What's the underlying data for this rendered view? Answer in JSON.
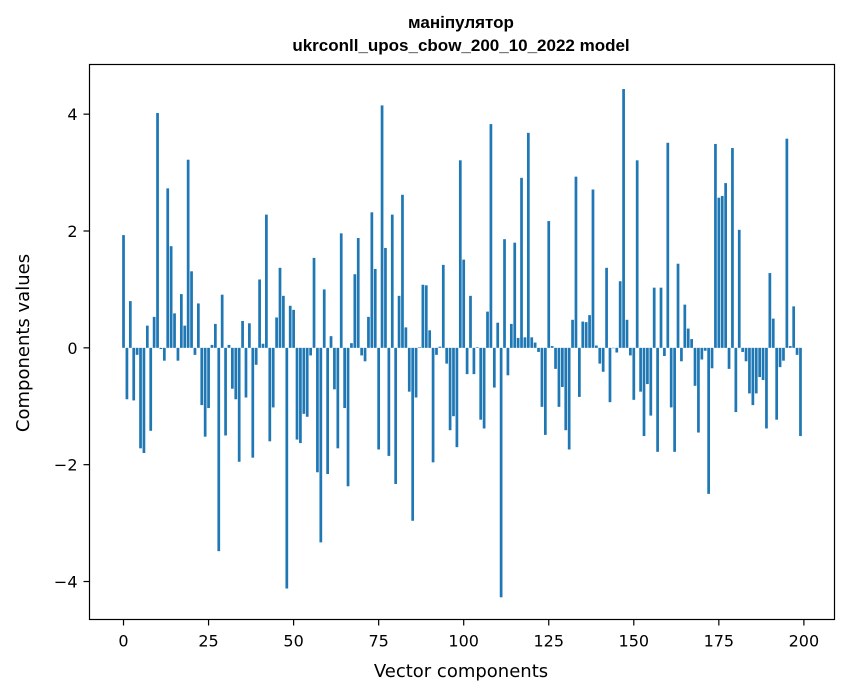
{
  "chart_data": {
    "type": "bar",
    "title": "маніпулятор",
    "subtitle": "ukrconll_upos_cbow_200_10_2022 model",
    "xlabel": "Vector components",
    "ylabel": "Components values",
    "xlim": [
      -10,
      209
    ],
    "ylim": [
      -4.65,
      4.85
    ],
    "xticks": [
      0,
      25,
      50,
      75,
      100,
      125,
      150,
      175,
      200
    ],
    "xtick_labels": [
      "0",
      "25",
      "50",
      "75",
      "100",
      "125",
      "150",
      "175",
      "200"
    ],
    "yticks": [
      -4,
      -2,
      0,
      2,
      4
    ],
    "ytick_labels": [
      "−4",
      "−2",
      "0",
      "2",
      "4"
    ],
    "grid": false,
    "bar_color": "#1f77b4",
    "x": [
      0,
      1,
      2,
      3,
      4,
      5,
      6,
      7,
      8,
      9,
      10,
      11,
      12,
      13,
      14,
      15,
      16,
      17,
      18,
      19,
      20,
      21,
      22,
      23,
      24,
      25,
      26,
      27,
      28,
      29,
      30,
      31,
      32,
      33,
      34,
      35,
      36,
      37,
      38,
      39,
      40,
      41,
      42,
      43,
      44,
      45,
      46,
      47,
      48,
      49,
      50,
      51,
      52,
      53,
      54,
      55,
      56,
      57,
      58,
      59,
      60,
      61,
      62,
      63,
      64,
      65,
      66,
      67,
      68,
      69,
      70,
      71,
      72,
      73,
      74,
      75,
      76,
      77,
      78,
      79,
      80,
      81,
      82,
      83,
      84,
      85,
      86,
      87,
      88,
      89,
      90,
      91,
      92,
      93,
      94,
      95,
      96,
      97,
      98,
      99,
      100,
      101,
      102,
      103,
      104,
      105,
      106,
      107,
      108,
      109,
      110,
      111,
      112,
      113,
      114,
      115,
      116,
      117,
      118,
      119,
      120,
      121,
      122,
      123,
      124,
      125,
      126,
      127,
      128,
      129,
      130,
      131,
      132,
      133,
      134,
      135,
      136,
      137,
      138,
      139,
      140,
      141,
      142,
      143,
      144,
      145,
      146,
      147,
      148,
      149,
      150,
      151,
      152,
      153,
      154,
      155,
      156,
      157,
      158,
      159,
      160,
      161,
      162,
      163,
      164,
      165,
      166,
      167,
      168,
      169,
      170,
      171,
      172,
      173,
      174,
      175,
      176,
      177,
      178,
      179,
      180,
      181,
      182,
      183,
      184,
      185,
      186,
      187,
      188,
      189,
      190,
      191,
      192,
      193,
      194,
      195,
      196,
      197,
      198,
      199
    ],
    "values": [
      1.93,
      -0.88,
      0.8,
      -0.9,
      -0.12,
      -1.72,
      -1.8,
      0.38,
      -1.42,
      0.53,
      4.02,
      -0.02,
      -0.22,
      2.73,
      1.74,
      0.59,
      -0.22,
      0.92,
      0.38,
      3.22,
      1.31,
      -0.12,
      0.76,
      -0.98,
      -1.52,
      -1.03,
      0.05,
      0.41,
      -3.48,
      0.91,
      -1.5,
      0.05,
      -0.7,
      -0.88,
      -1.95,
      0.46,
      -0.85,
      0.42,
      -1.88,
      -0.29,
      1.17,
      0.07,
      2.28,
      -1.6,
      -1.02,
      0.52,
      1.37,
      0.89,
      -4.12,
      0.72,
      0.65,
      -1.57,
      -1.63,
      -1.13,
      -1.18,
      -0.13,
      1.54,
      -2.13,
      -3.33,
      1.0,
      -2.16,
      0.2,
      -0.71,
      -1.72,
      1.96,
      -1.03,
      -2.37,
      0.08,
      1.26,
      1.88,
      -0.13,
      -0.23,
      0.53,
      2.32,
      1.35,
      -1.74,
      4.15,
      1.71,
      -1.85,
      2.28,
      -2.33,
      0.89,
      2.62,
      0.35,
      -0.75,
      -2.96,
      -0.85,
      0.01,
      1.08,
      1.07,
      0.3,
      -1.96,
      -0.12,
      0.02,
      1.42,
      -0.27,
      -1.41,
      -1.17,
      -1.7,
      3.21,
      1.51,
      -0.45,
      0.89,
      -0.45,
      0.01,
      -1.23,
      -1.38,
      0.62,
      3.83,
      -0.68,
      0.43,
      -4.27,
      1.86,
      -0.47,
      0.41,
      1.8,
      0.17,
      2.91,
      0.18,
      3.68,
      0.18,
      0.09,
      -0.07,
      -1.01,
      -1.49,
      2.17,
      0.03,
      -0.36,
      -1.01,
      -0.67,
      -1.41,
      -1.74,
      0.48,
      2.93,
      -0.84,
      0.45,
      0.44,
      0.56,
      2.71,
      0.04,
      -0.27,
      -0.41,
      1.37,
      -0.93,
      0.0,
      -0.08,
      1.14,
      4.43,
      0.48,
      -0.13,
      -0.89,
      3.21,
      -0.75,
      -1.51,
      -0.62,
      -1.16,
      1.03,
      -1.78,
      1.03,
      -0.14,
      3.51,
      -1.02,
      -1.78,
      1.44,
      -0.23,
      0.74,
      0.33,
      0.15,
      -0.65,
      -1.45,
      -0.2,
      -0.05,
      -2.5,
      -0.35,
      3.49,
      2.57,
      2.6,
      2.82,
      -0.36,
      3.42,
      -1.1,
      2.02,
      -0.07,
      -0.23,
      -0.78,
      -0.98,
      -0.78,
      -0.5,
      -0.55,
      -1.38,
      1.28,
      0.5,
      -1.23,
      -0.33,
      -0.22,
      3.58,
      0.03,
      0.71,
      -0.12,
      -1.51
    ]
  }
}
